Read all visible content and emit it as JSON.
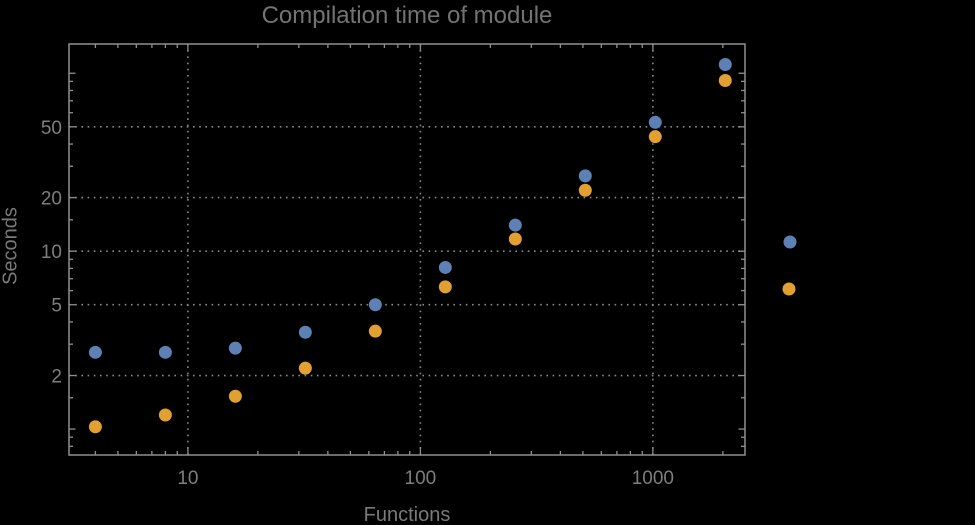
{
  "chart_data": {
    "type": "scatter",
    "title": "Compilation time of module",
    "xlabel": "Functions",
    "ylabel": "Seconds",
    "x_scale": "log",
    "y_scale": "log",
    "xlim": [
      3.08,
      2490
    ],
    "ylim": [
      0.715,
      146
    ],
    "grid": "dotted, at labeled ticks only",
    "legend_position": "right-of-frame, marker dots only, no visible labels",
    "x_tick_labels": [
      {
        "value": 10,
        "label": "10"
      },
      {
        "value": 100,
        "label": "100"
      },
      {
        "value": 1000,
        "label": "1000"
      }
    ],
    "y_tick_labels": [
      {
        "value": 2,
        "label": "2"
      },
      {
        "value": 5,
        "label": "5"
      },
      {
        "value": 10,
        "label": "10"
      },
      {
        "value": 20,
        "label": "20"
      },
      {
        "value": 50,
        "label": "50"
      }
    ],
    "y_ticks_unlabeled": [
      1,
      100
    ],
    "x_minor_ticks": [
      4,
      5,
      6,
      7,
      8,
      9,
      20,
      30,
      40,
      50,
      60,
      70,
      80,
      90,
      200,
      300,
      400,
      500,
      600,
      700,
      800,
      900,
      2000
    ],
    "y_minor_ticks": [
      0.8,
      0.9,
      1.5,
      3,
      4,
      6,
      7,
      8,
      9,
      15,
      30,
      40,
      60,
      70,
      80,
      90
    ],
    "x": [
      4,
      8,
      16,
      32,
      64,
      128,
      256,
      512,
      1024,
      2048
    ],
    "series": [
      {
        "name": "blue",
        "color": "#5e81b5",
        "values": [
          2.7,
          2.7,
          2.85,
          3.5,
          5.0,
          8.1,
          14,
          26.5,
          53,
          112
        ]
      },
      {
        "name": "orange",
        "color": "#e2a030",
        "values": [
          1.03,
          1.2,
          1.53,
          2.2,
          3.55,
          6.3,
          11.7,
          22,
          44,
          91
        ]
      }
    ],
    "legend_markers": [
      {
        "name": "legend-marker-blue",
        "color": "#5e81b5"
      },
      {
        "name": "legend-marker-orange",
        "color": "#e2a030"
      }
    ]
  },
  "colors": {
    "background": "#000000",
    "frame": "#8f8f8f",
    "grid": "#8a8a8a",
    "title_text": "#737373",
    "tick_text": "#7e7e7e",
    "axis_label_text": "#7a7a7a",
    "series_blue": "#5e81b5",
    "series_orange": "#e2a030"
  }
}
